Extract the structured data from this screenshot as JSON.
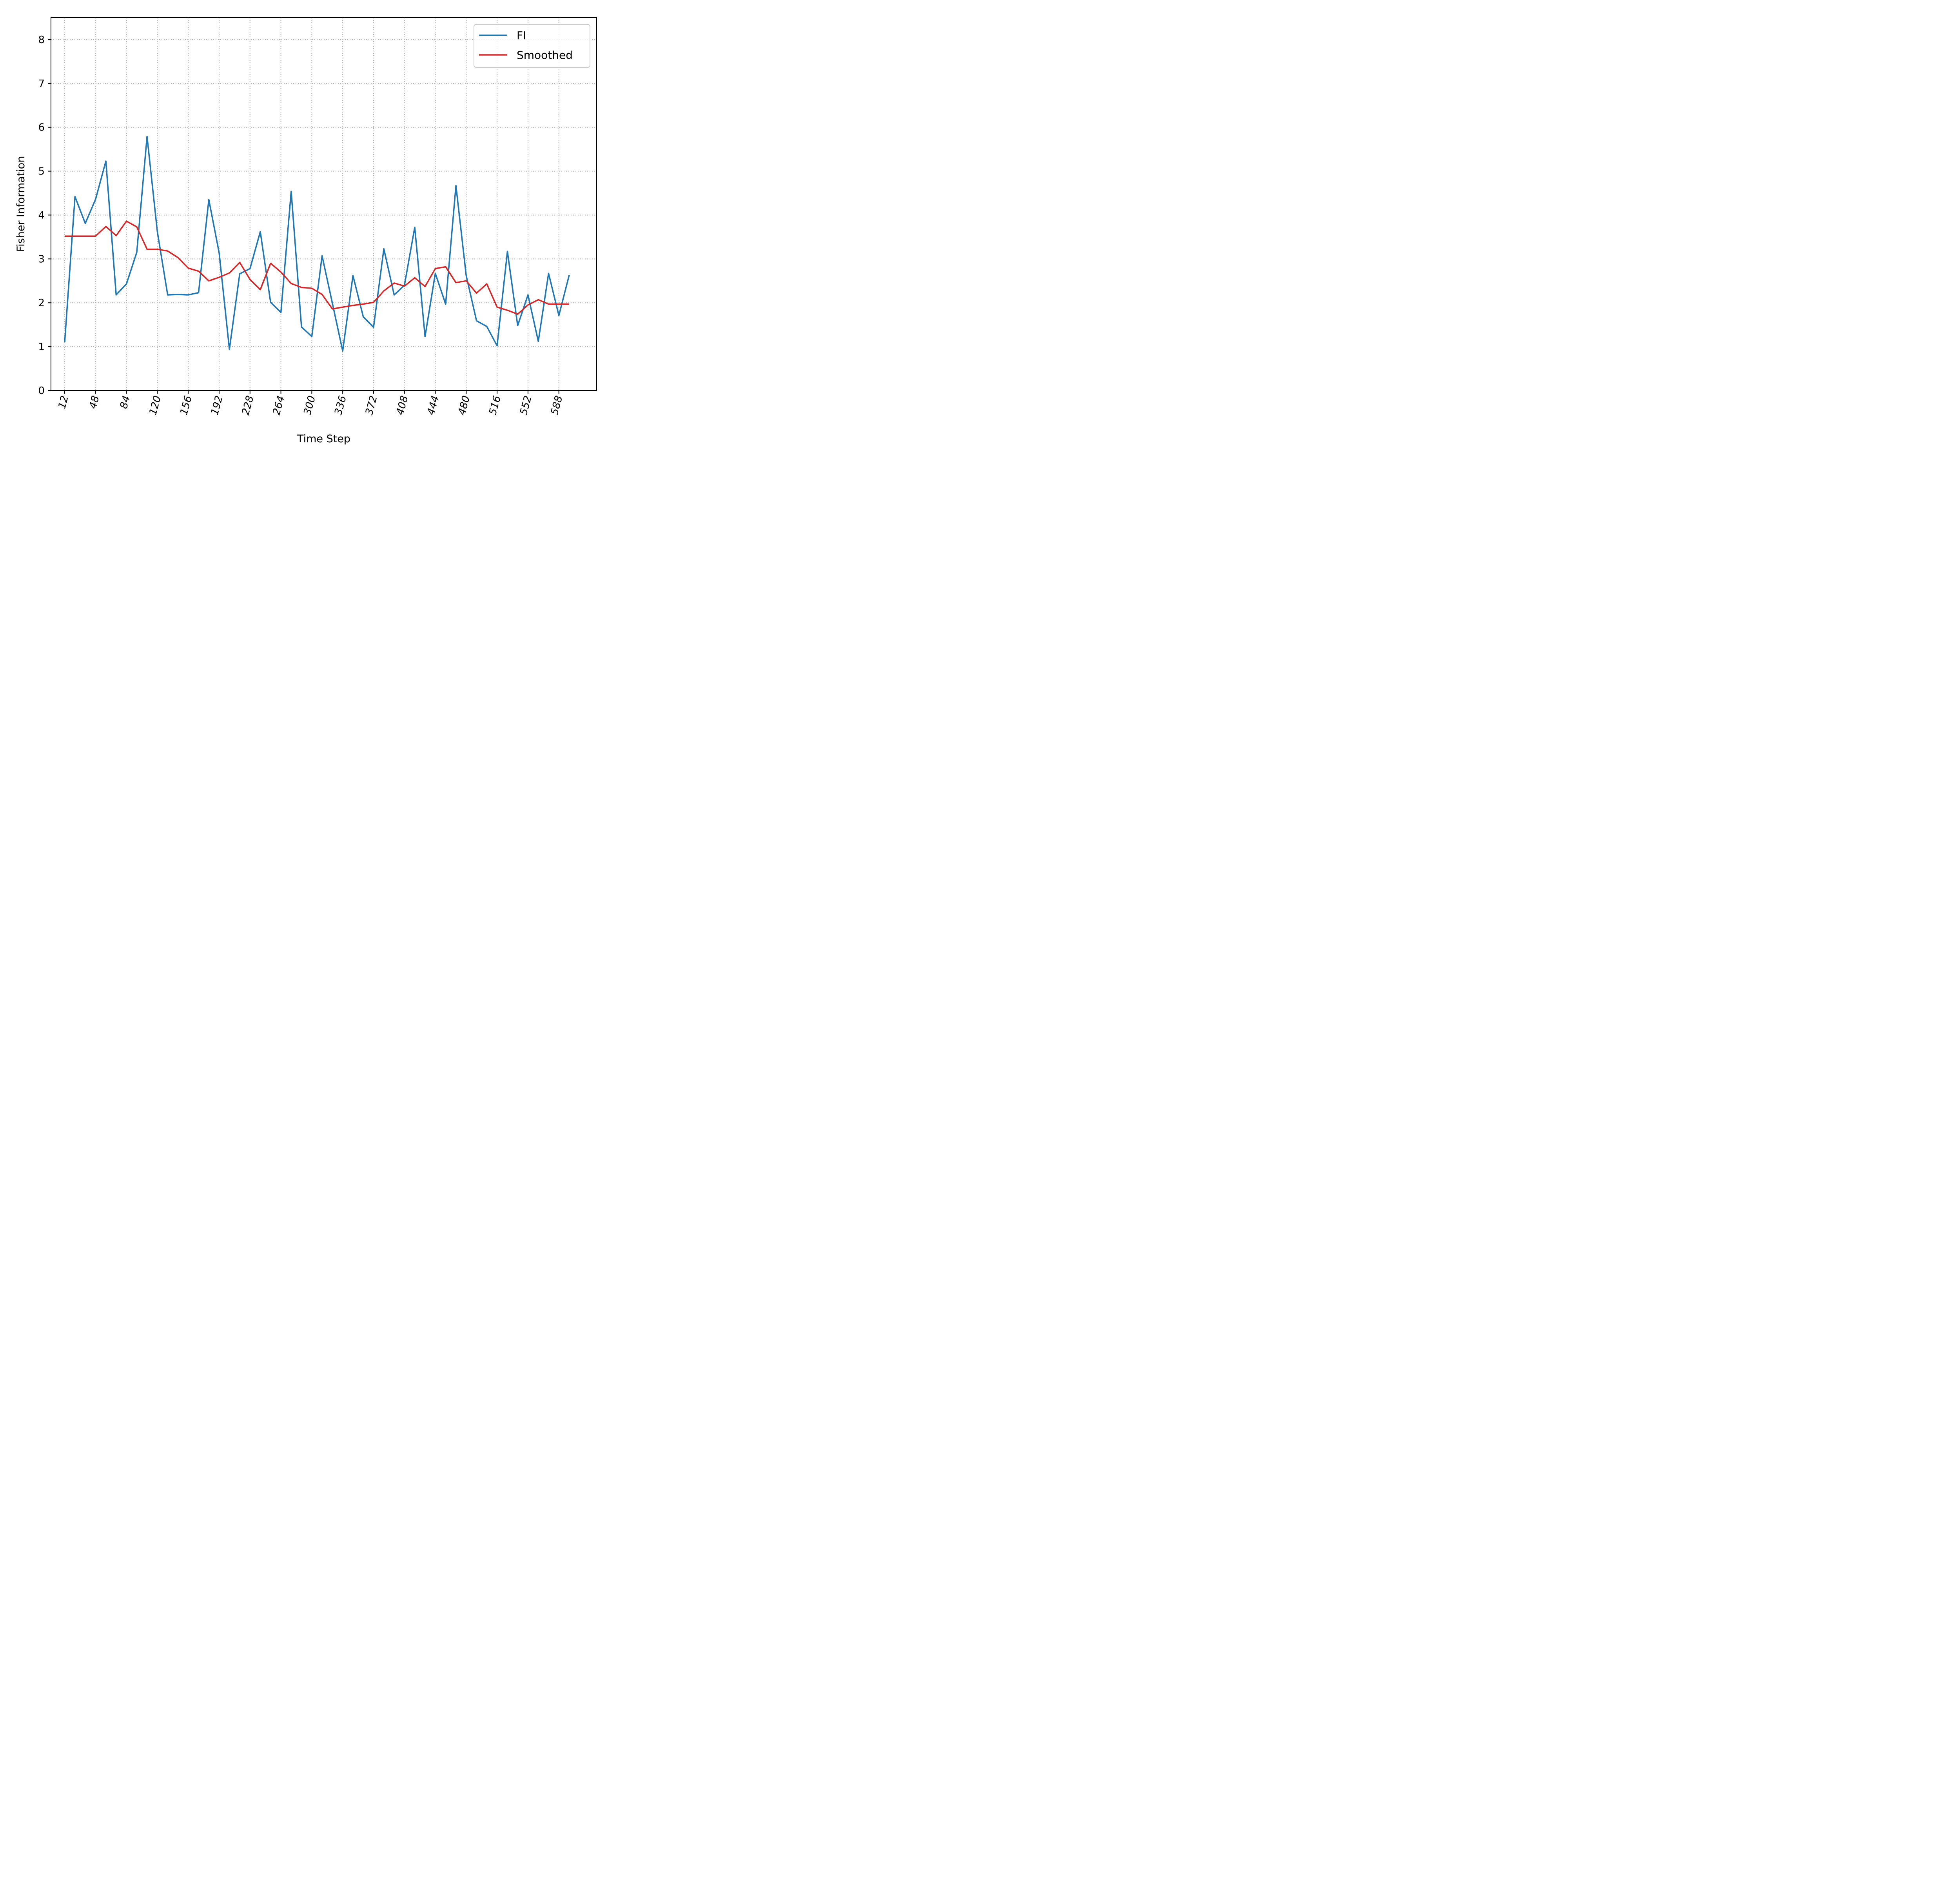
{
  "chart_data": {
    "type": "line",
    "title": "",
    "xlabel": "Time Step",
    "ylabel": "Fisher Information",
    "xlim": [
      -4,
      632
    ],
    "ylim": [
      0,
      8.5
    ],
    "x_ticks": [
      12,
      48,
      84,
      120,
      156,
      192,
      228,
      264,
      300,
      336,
      372,
      408,
      444,
      480,
      516,
      552,
      588
    ],
    "y_ticks": [
      0,
      1,
      2,
      3,
      4,
      5,
      6,
      7,
      8
    ],
    "grid": true,
    "legend_position": "top-right",
    "x": [
      12,
      24,
      36,
      48,
      60,
      72,
      84,
      96,
      108,
      120,
      132,
      144,
      156,
      168,
      180,
      192,
      204,
      216,
      228,
      240,
      252,
      264,
      276,
      288,
      300,
      312,
      324,
      336,
      348,
      360,
      372,
      384,
      396,
      408,
      420,
      432,
      444,
      456,
      468,
      480,
      492,
      504,
      516,
      528,
      540,
      552,
      564,
      576,
      588,
      600
    ],
    "series": [
      {
        "name": "FI",
        "color": "#1f77b4",
        "values": [
          1.1,
          4.42,
          3.81,
          4.36,
          5.23,
          2.18,
          2.43,
          3.15,
          5.79,
          3.62,
          2.18,
          2.19,
          2.18,
          2.23,
          4.35,
          3.14,
          0.94,
          2.66,
          2.78,
          3.62,
          2.01,
          1.78,
          4.54,
          1.45,
          1.23,
          3.07,
          1.99,
          0.9,
          2.62,
          1.68,
          1.44,
          3.23,
          2.18,
          2.4,
          3.72,
          1.23,
          2.67,
          1.97,
          4.67,
          2.62,
          1.59,
          1.46,
          1.02,
          3.17,
          1.48,
          2.18,
          1.12,
          2.67,
          1.71,
          2.63
        ]
      },
      {
        "name": "Smoothed",
        "color": "#d62728",
        "values": [
          3.52,
          3.52,
          3.52,
          3.52,
          3.74,
          3.53,
          3.86,
          3.73,
          3.22,
          3.22,
          3.18,
          3.03,
          2.79,
          2.72,
          2.5,
          2.58,
          2.68,
          2.92,
          2.53,
          2.3,
          2.9,
          2.7,
          2.44,
          2.35,
          2.33,
          2.19,
          1.86,
          1.9,
          1.94,
          1.97,
          2.01,
          2.27,
          2.45,
          2.38,
          2.57,
          2.37,
          2.78,
          2.82,
          2.46,
          2.5,
          2.22,
          2.43,
          1.9,
          1.83,
          1.74,
          1.95,
          2.07,
          1.97,
          1.97,
          1.97
        ]
      }
    ]
  }
}
